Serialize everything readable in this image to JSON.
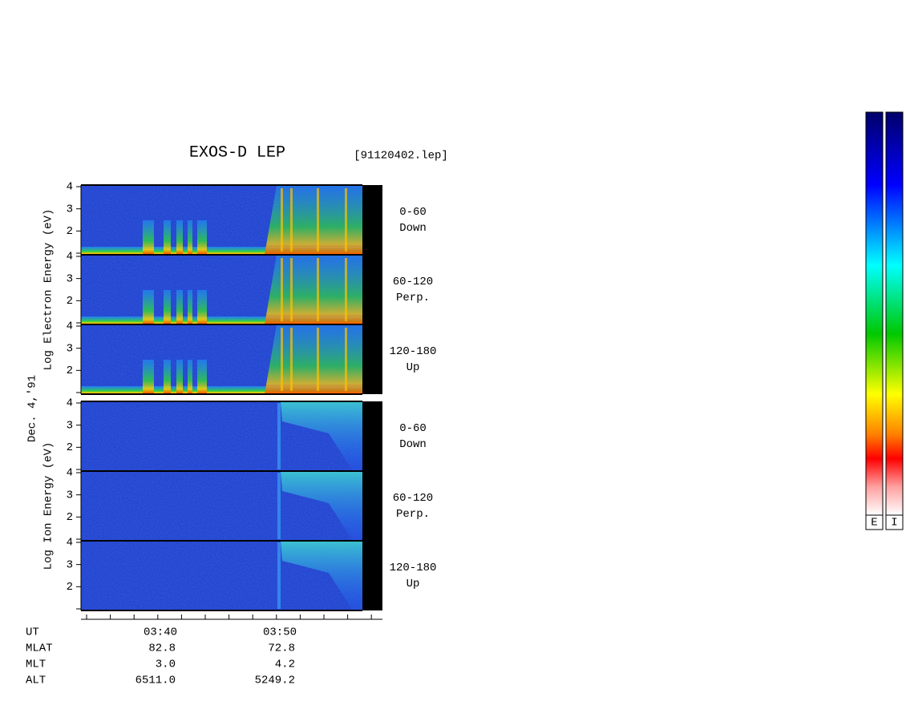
{
  "title": "EXOS-D LEP",
  "file": "[91120402.lep]",
  "date": "Dec. 4,'91",
  "groups": [
    {
      "label": "Log  Electron  Energy (eV)",
      "panels": [
        {
          "label": "0-60",
          "sub": "Down",
          "ylim": [
            1,
            4
          ],
          "yticks": [
            2,
            3,
            4
          ]
        },
        {
          "label": "60-120",
          "sub": "Perp.",
          "ylim": [
            1,
            4
          ],
          "yticks": [
            2,
            3,
            4
          ]
        },
        {
          "label": "120-180",
          "sub": "Up",
          "ylim": [
            1,
            4
          ],
          "yticks": [
            2,
            3,
            4
          ]
        }
      ]
    },
    {
      "label": "Log  Ion  Energy (eV)",
      "panels": [
        {
          "label": "0-60",
          "sub": "Down",
          "ylim": [
            1,
            4
          ],
          "yticks": [
            2,
            3,
            4
          ]
        },
        {
          "label": "60-120",
          "sub": "Perp.",
          "ylim": [
            1,
            4
          ],
          "yticks": [
            2,
            3,
            4
          ]
        },
        {
          "label": "120-180",
          "sub": "Up",
          "ylim": [
            1,
            4
          ],
          "yticks": [
            2,
            3,
            4
          ]
        }
      ]
    }
  ],
  "orbit": {
    "rows": [
      {
        "name": "UT",
        "values": [
          "03:40",
          "03:50"
        ]
      },
      {
        "name": "MLAT",
        "values": [
          "82.8",
          "72.8"
        ]
      },
      {
        "name": "MLT",
        "values": [
          "3.0",
          "4.2"
        ]
      },
      {
        "name": "ALT",
        "values": [
          "6511.0",
          "5249.2"
        ]
      }
    ]
  },
  "colorbars": [
    "E",
    "I"
  ]
}
